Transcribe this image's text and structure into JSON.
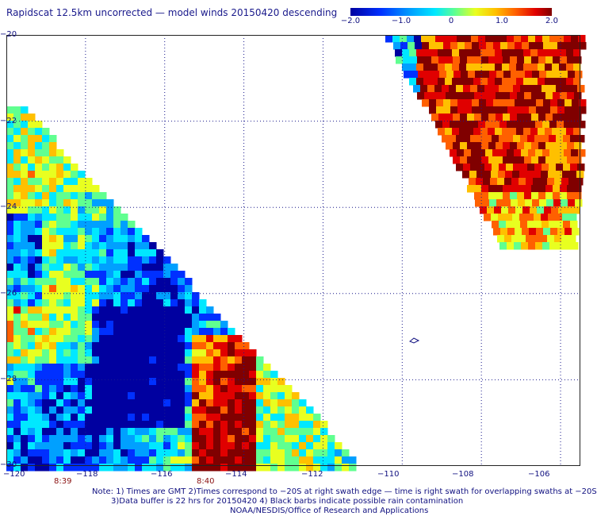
{
  "title": "Rapidscat 12.5km uncorrected — model winds 20150420 descending",
  "colorbar": {
    "labels": [
      {
        "text": "−2.0",
        "value": -2.0
      },
      {
        "text": "−1.0",
        "value": -1.0
      },
      {
        "text": "0",
        "value": 0
      },
      {
        "text": "1.0",
        "value": 1.0
      },
      {
        "text": "2.0",
        "value": 2.0
      }
    ],
    "range": [
      -2.0,
      2.0
    ],
    "colors": [
      "#0000a0",
      "#0030ff",
      "#00a0ff",
      "#00e8ff",
      "#60ff90",
      "#e8ff20",
      "#ffc000",
      "#ff6000",
      "#e00000",
      "#800000"
    ]
  },
  "map": {
    "lat_labels": [
      "−20",
      "−22",
      "−24",
      "−26",
      "−28",
      "−30"
    ],
    "lon_labels": [
      "−120",
      "−118",
      "−116",
      "−114",
      "−112",
      "−110",
      "−108",
      "−106"
    ],
    "lat_range": [
      -30,
      -20
    ],
    "lon_range": [
      -120,
      -105.5
    ],
    "grid": "dotted",
    "swath_times": [
      "8:39",
      "8:40"
    ]
  },
  "notes": {
    "line1": "Note: 1) Times are GMT 2)Times correspond to −20S at right swath edge — time is right swath for overlapping swaths at −20S",
    "line2": "3)Data buffer is 22 hrs for 20150420 4) Black barbs indicate possible rain contamination",
    "line3": "NOAA/NESDIS/Office of Research and Applications"
  }
}
